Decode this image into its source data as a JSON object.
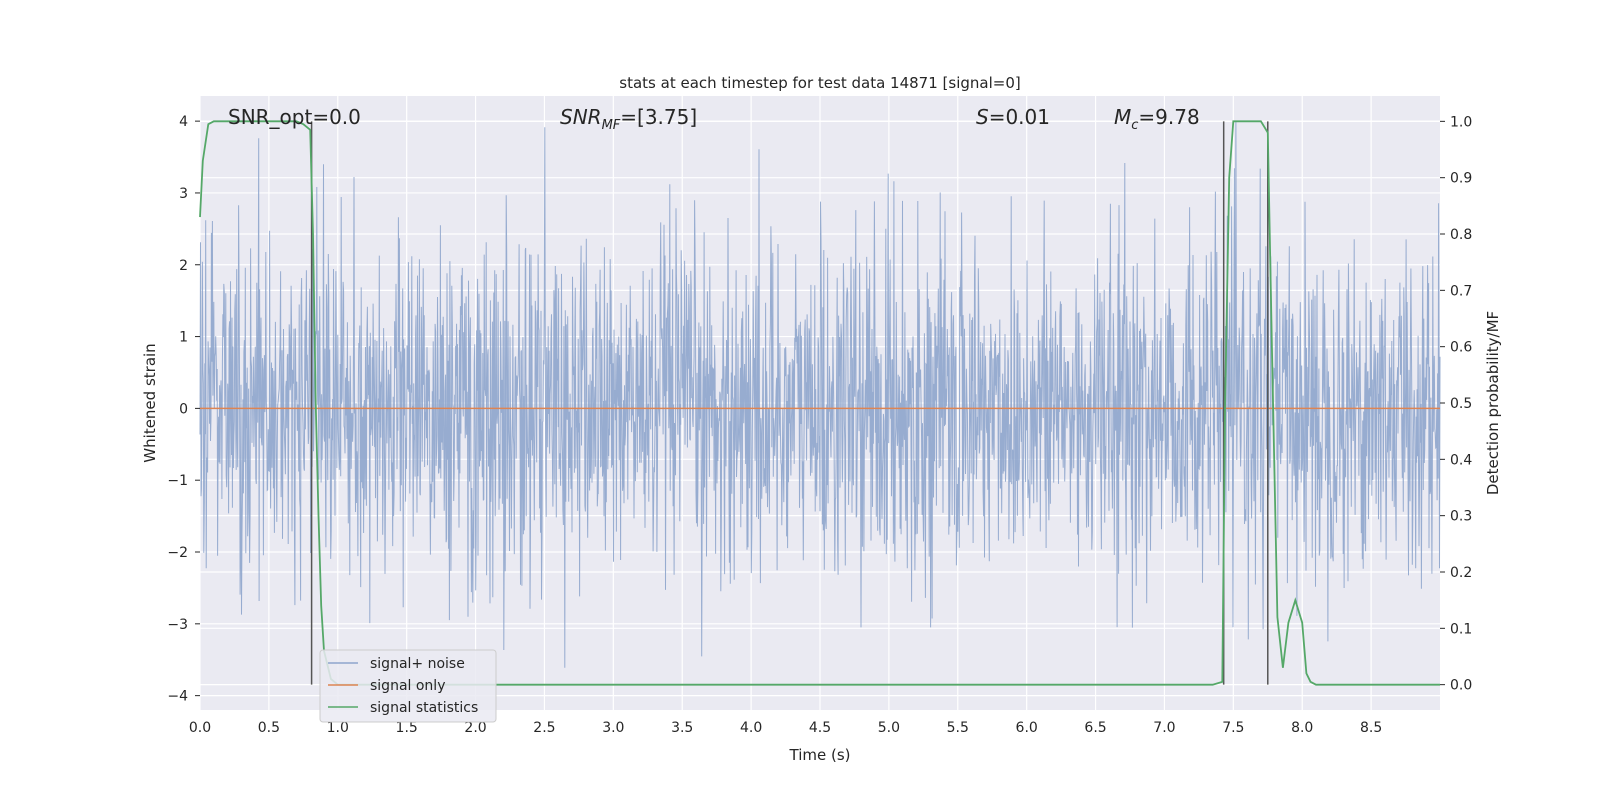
{
  "chart_data": {
    "type": "line",
    "title": "stats at each timestep for test data 14871 [signal=0]",
    "xlabel": "Time (s)",
    "ylabel": "Whitened strain",
    "y2label": "Detection probability/MF",
    "xlim": [
      0.0,
      9.0
    ],
    "ylim": [
      -4.2,
      4.35
    ],
    "y2lim": [
      -0.045,
      1.045
    ],
    "x_ticks": [
      "0.0",
      "0.5",
      "1.0",
      "1.5",
      "2.0",
      "2.5",
      "3.0",
      "3.5",
      "4.0",
      "4.5",
      "5.0",
      "5.5",
      "6.0",
      "6.5",
      "7.0",
      "7.5",
      "8.0",
      "8.5"
    ],
    "y_ticks": [
      "4",
      "3",
      "2",
      "1",
      "0",
      "−1",
      "−2",
      "−3",
      "−4"
    ],
    "y2_ticks": [
      "1.0",
      "0.9",
      "0.8",
      "0.7",
      "0.6",
      "0.5",
      "0.4",
      "0.3",
      "0.2",
      "0.1",
      "0.0"
    ],
    "grid": true,
    "legend_position": "lower-left",
    "annotations": {
      "snr_opt": "SNR_opt=0.0",
      "snr_mf_main": "SNR",
      "snr_mf_sub": "MF",
      "snr_mf_rest": "=[3.75]",
      "s_main": "S",
      "s_rest": "=0.01",
      "mc_main": "M",
      "mc_sub": "c",
      "mc_rest": "=9.78"
    },
    "series": [
      {
        "name": "signal+ noise",
        "axis": "left",
        "color": "#8ea5cc",
        "description_range": [
          -3.8,
          4.0
        ]
      },
      {
        "name": "signal only",
        "axis": "left",
        "color": "#dd8452",
        "constant_value": 0.0
      },
      {
        "name": "signal statistics",
        "axis": "right",
        "color": "#55a868",
        "x": [
          0.0,
          0.02,
          0.06,
          0.1,
          0.2,
          0.3,
          0.4,
          0.5,
          0.6,
          0.7,
          0.75,
          0.8,
          0.82,
          0.84,
          0.86,
          0.88,
          0.9,
          0.95,
          1.0,
          1.1,
          1.5,
          2.0,
          3.0,
          4.0,
          5.0,
          6.0,
          7.0,
          7.35,
          7.42,
          7.44,
          7.47,
          7.5,
          7.6,
          7.7,
          7.75,
          7.78,
          7.82,
          7.86,
          7.9,
          7.95,
          8.0,
          8.03,
          8.06,
          8.1,
          8.2,
          8.5,
          9.0
        ],
        "y": [
          0.83,
          0.93,
          0.995,
          1.0,
          1.0,
          1.0,
          1.0,
          1.0,
          1.0,
          1.0,
          0.995,
          0.985,
          0.8,
          0.5,
          0.3,
          0.14,
          0.06,
          0.01,
          0.0,
          0.0,
          0.0,
          0.0,
          0.0,
          0.0,
          0.0,
          0.0,
          0.0,
          0.0,
          0.005,
          0.5,
          0.9,
          1.0,
          1.0,
          1.0,
          0.98,
          0.6,
          0.12,
          0.03,
          0.11,
          0.15,
          0.11,
          0.02,
          0.005,
          0.0,
          0.0,
          0.0,
          0.0
        ]
      }
    ],
    "vertical_markers": [
      {
        "x": 0.81,
        "y2_top": 1.0,
        "y2_bottom": 0.0
      },
      {
        "x": 7.43,
        "y2_top": 1.0,
        "y2_bottom": 0.0
      },
      {
        "x": 7.75,
        "y2_top": 1.0,
        "y2_bottom": 0.0
      }
    ]
  }
}
